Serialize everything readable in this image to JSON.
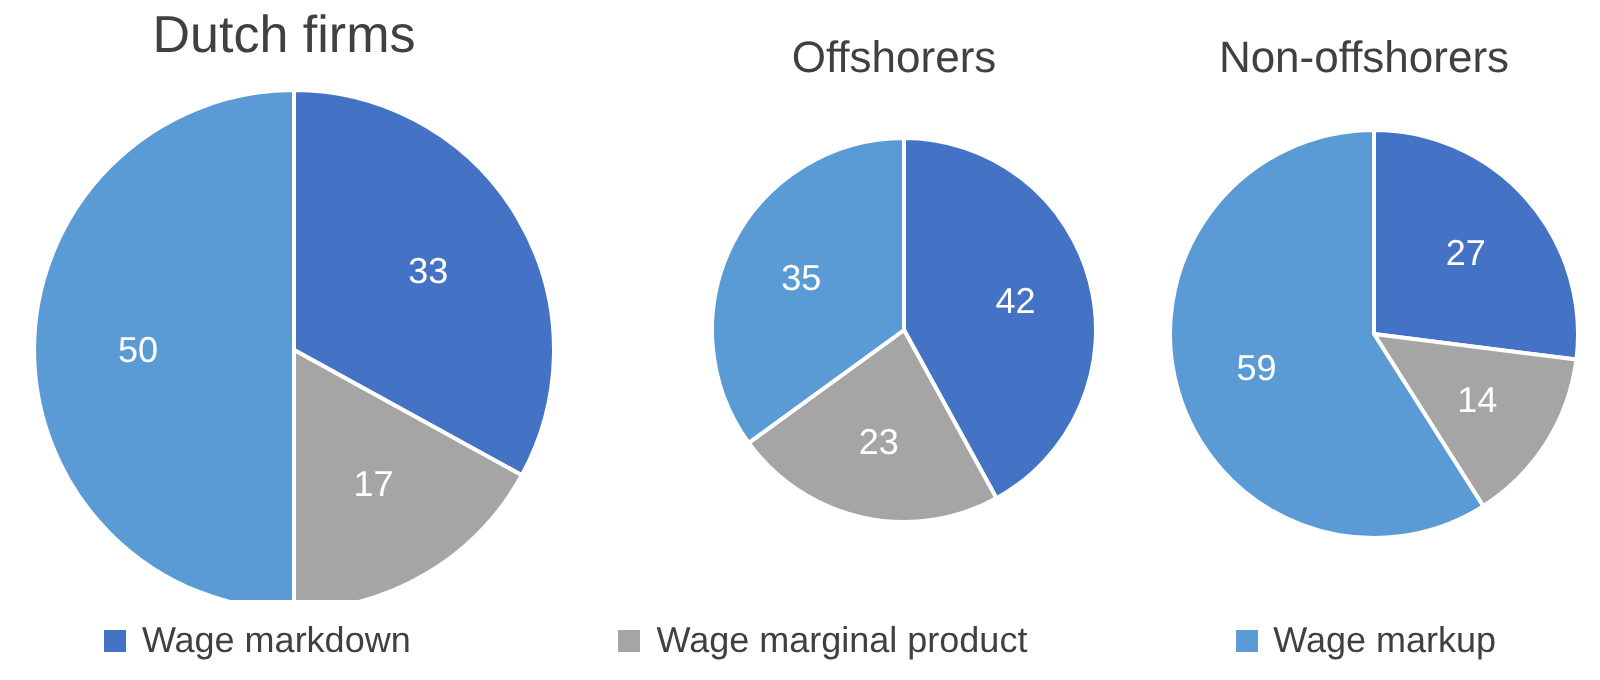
{
  "chart_data": [
    {
      "type": "pie",
      "title": "Dutch firms",
      "categories": [
        "Wage markdown",
        "Wage marginal product",
        "Wage markup"
      ],
      "values": [
        33,
        17,
        50
      ],
      "colors": [
        "#4472c4",
        "#a5a5a5",
        "#5b9bd5"
      ],
      "data_labels": true,
      "legend": "bottom"
    },
    {
      "type": "pie",
      "title": "Offshorers",
      "categories": [
        null,
        null,
        null
      ],
      "values": [
        42,
        23,
        35
      ],
      "colors": [
        "#4472c4",
        "#a5a5a5",
        "#5b9bd5"
      ],
      "data_labels": true
    },
    {
      "type": "pie",
      "title": "Non-offshorers",
      "categories": [
        null,
        null,
        null
      ],
      "values": [
        27,
        14,
        59
      ],
      "colors": [
        "#4472c4",
        "#a5a5a5",
        "#5b9bd5"
      ],
      "data_labels": true
    }
  ]
}
